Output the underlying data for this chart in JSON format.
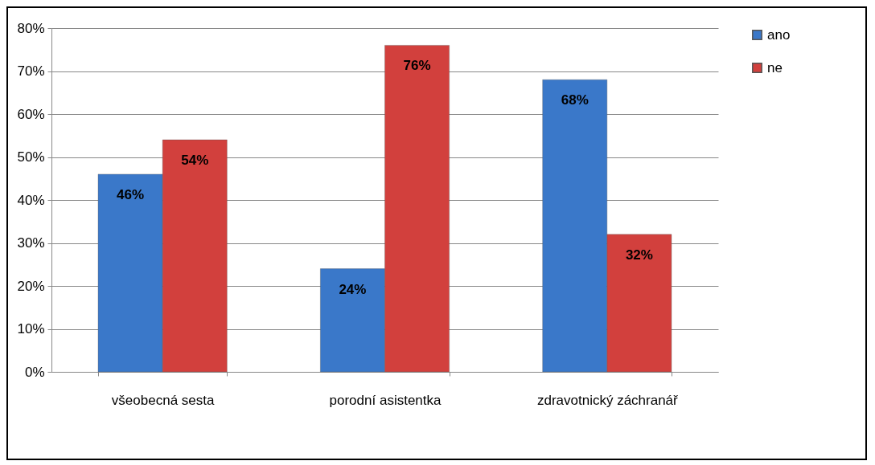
{
  "chart_data": {
    "type": "bar",
    "categories": [
      "všeobecná sesta",
      "porodní asistentka",
      "zdravotnický záchranář"
    ],
    "series": [
      {
        "name": "ano",
        "color": "#3a78c9",
        "values": [
          46,
          24,
          68
        ],
        "value_labels": [
          "46%",
          "24%",
          "68%"
        ]
      },
      {
        "name": "ne",
        "color": "#d2403d",
        "values": [
          54,
          76,
          32
        ],
        "value_labels": [
          "54%",
          "76%",
          "32%"
        ]
      }
    ],
    "ylim": [
      0,
      80
    ],
    "yticks": [
      {
        "value": 0,
        "label": "0%"
      },
      {
        "value": 10,
        "label": "10%"
      },
      {
        "value": 20,
        "label": "20%"
      },
      {
        "value": 30,
        "label": "30%"
      },
      {
        "value": 40,
        "label": "40%"
      },
      {
        "value": 50,
        "label": "50%"
      },
      {
        "value": 60,
        "label": "60%"
      },
      {
        "value": 70,
        "label": "70%"
      },
      {
        "value": 80,
        "label": "80%"
      }
    ],
    "grid": "y",
    "legend": "right"
  }
}
